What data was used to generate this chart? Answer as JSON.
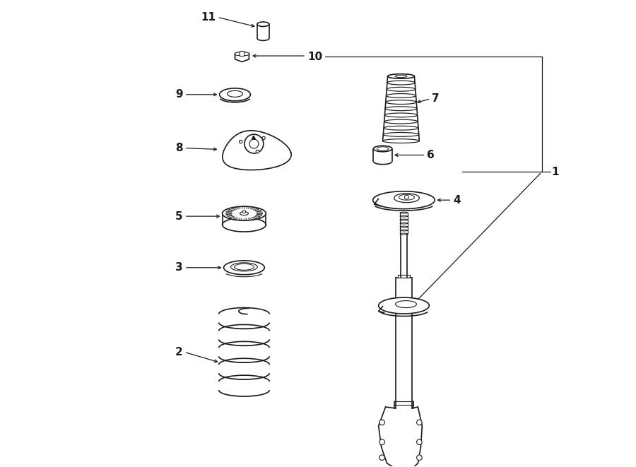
{
  "bg_color": "#ffffff",
  "line_color": "#1a1a1a",
  "fig_width": 9.0,
  "fig_height": 6.61,
  "dpi": 100,
  "lw_part": 1.2,
  "lw_callout": 0.9,
  "font_size": 11
}
